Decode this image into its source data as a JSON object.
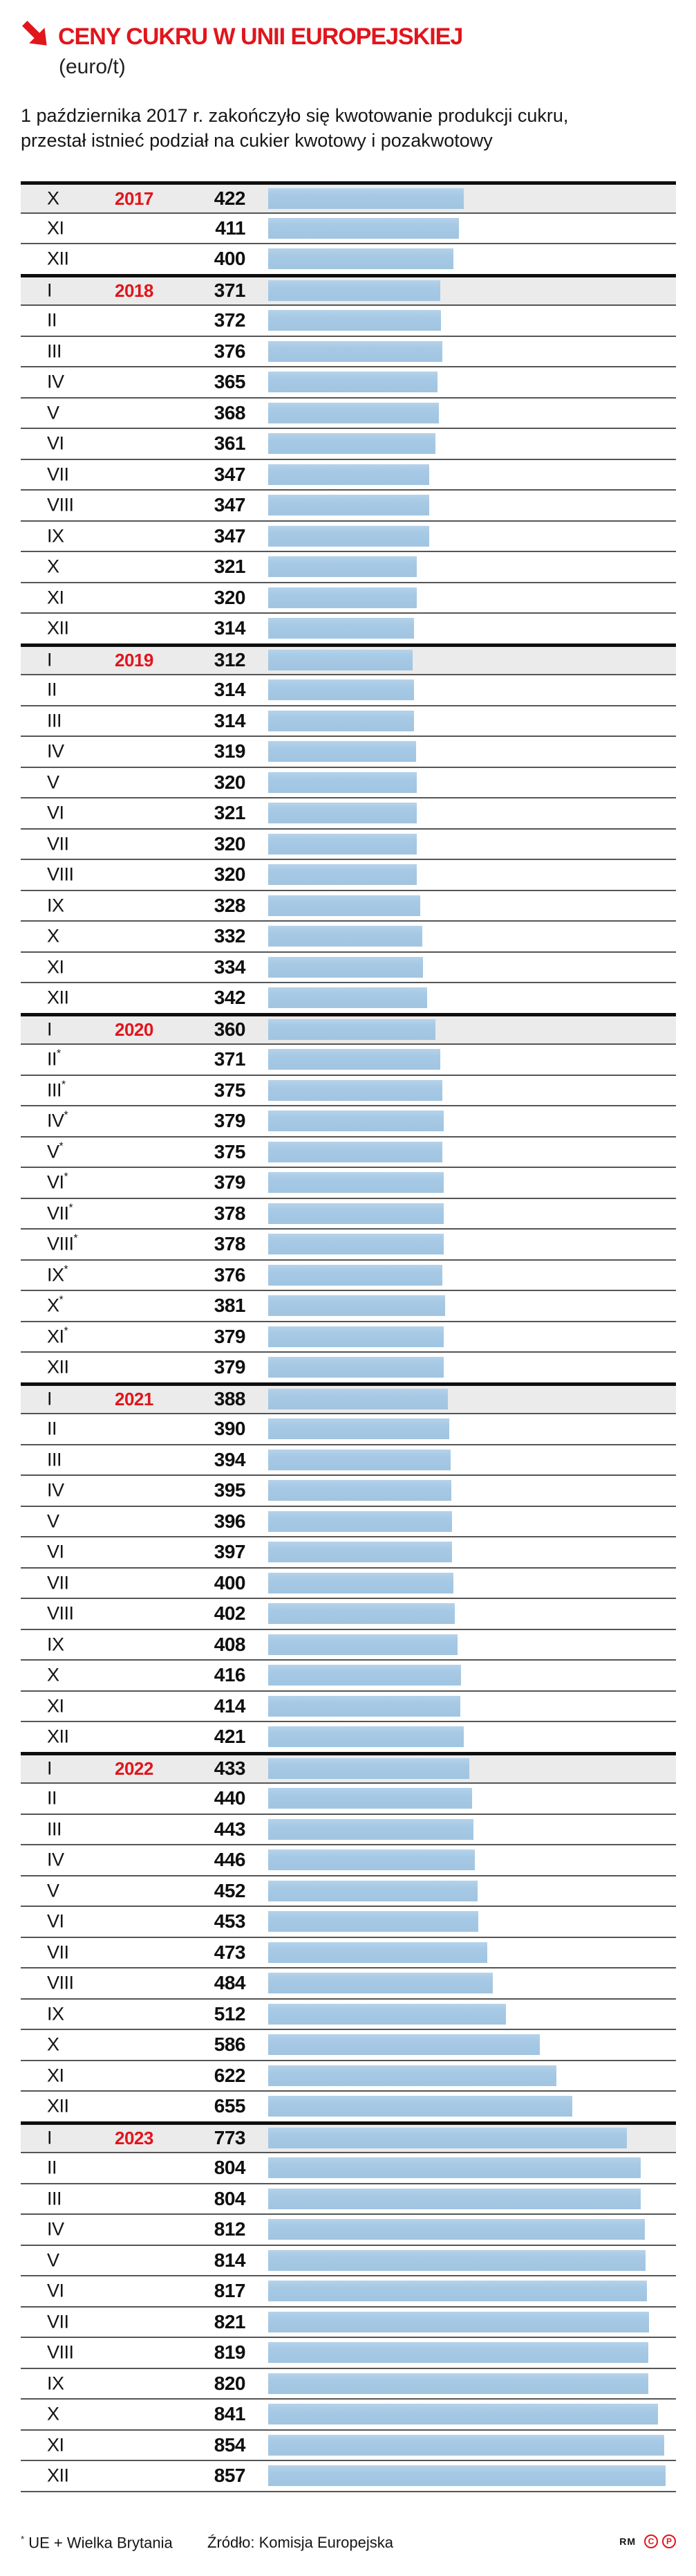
{
  "header": {
    "title": "CENY CUKRU W UNII EUROPEJSKIEJ",
    "subtitle": "(euro/t)",
    "intro_line1": "1 października 2017 r. zakończyło się kwotowanie produkcji cukru,",
    "intro_line2": "przestał istnieć podział na cukier kwotowy i pozakwotowy",
    "accent_color": "#e1151c"
  },
  "chart_data": {
    "type": "bar",
    "orientation": "horizontal",
    "value_unit": "euro/t",
    "xlim": [
      0,
      860
    ],
    "bar_color": "#a6c9e5",
    "year_row_bg": "#ebebeb",
    "note_for_asterisk": "UE + Wielka Brytania",
    "rows": [
      {
        "m": "X",
        "y": "2017",
        "v": 422,
        "a": false
      },
      {
        "m": "XI",
        "y": "",
        "v": 411,
        "a": false
      },
      {
        "m": "XII",
        "y": "",
        "v": 400,
        "a": false
      },
      {
        "m": "I",
        "y": "2018",
        "v": 371,
        "a": false
      },
      {
        "m": "II",
        "y": "",
        "v": 372,
        "a": false
      },
      {
        "m": "III",
        "y": "",
        "v": 376,
        "a": false
      },
      {
        "m": "IV",
        "y": "",
        "v": 365,
        "a": false
      },
      {
        "m": "V",
        "y": "",
        "v": 368,
        "a": false
      },
      {
        "m": "VI",
        "y": "",
        "v": 361,
        "a": false
      },
      {
        "m": "VII",
        "y": "",
        "v": 347,
        "a": false
      },
      {
        "m": "VIII",
        "y": "",
        "v": 347,
        "a": false
      },
      {
        "m": "IX",
        "y": "",
        "v": 347,
        "a": false
      },
      {
        "m": "X",
        "y": "",
        "v": 321,
        "a": false
      },
      {
        "m": "XI",
        "y": "",
        "v": 320,
        "a": false
      },
      {
        "m": "XII",
        "y": "",
        "v": 314,
        "a": false
      },
      {
        "m": "I",
        "y": "2019",
        "v": 312,
        "a": false
      },
      {
        "m": "II",
        "y": "",
        "v": 314,
        "a": false
      },
      {
        "m": "III",
        "y": "",
        "v": 314,
        "a": false
      },
      {
        "m": "IV",
        "y": "",
        "v": 319,
        "a": false
      },
      {
        "m": "V",
        "y": "",
        "v": 320,
        "a": false
      },
      {
        "m": "VI",
        "y": "",
        "v": 321,
        "a": false
      },
      {
        "m": "VII",
        "y": "",
        "v": 320,
        "a": false
      },
      {
        "m": "VIII",
        "y": "",
        "v": 320,
        "a": false
      },
      {
        "m": "IX",
        "y": "",
        "v": 328,
        "a": false
      },
      {
        "m": "X",
        "y": "",
        "v": 332,
        "a": false
      },
      {
        "m": "XI",
        "y": "",
        "v": 334,
        "a": false
      },
      {
        "m": "XII",
        "y": "",
        "v": 342,
        "a": false
      },
      {
        "m": "I",
        "y": "2020",
        "v": 360,
        "a": false
      },
      {
        "m": "II",
        "y": "",
        "v": 371,
        "a": true
      },
      {
        "m": "III",
        "y": "",
        "v": 375,
        "a": true
      },
      {
        "m": "IV",
        "y": "",
        "v": 379,
        "a": true
      },
      {
        "m": "V",
        "y": "",
        "v": 375,
        "a": true
      },
      {
        "m": "VI",
        "y": "",
        "v": 379,
        "a": true
      },
      {
        "m": "VII",
        "y": "",
        "v": 378,
        "a": true
      },
      {
        "m": "VIII",
        "y": "",
        "v": 378,
        "a": true
      },
      {
        "m": "IX",
        "y": "",
        "v": 376,
        "a": true
      },
      {
        "m": "X",
        "y": "",
        "v": 381,
        "a": true
      },
      {
        "m": "XI",
        "y": "",
        "v": 379,
        "a": true
      },
      {
        "m": "XII",
        "y": "",
        "v": 379,
        "a": false
      },
      {
        "m": "I",
        "y": "2021",
        "v": 388,
        "a": false
      },
      {
        "m": "II",
        "y": "",
        "v": 390,
        "a": false
      },
      {
        "m": "III",
        "y": "",
        "v": 394,
        "a": false
      },
      {
        "m": "IV",
        "y": "",
        "v": 395,
        "a": false
      },
      {
        "m": "V",
        "y": "",
        "v": 396,
        "a": false
      },
      {
        "m": "VI",
        "y": "",
        "v": 397,
        "a": false
      },
      {
        "m": "VII",
        "y": "",
        "v": 400,
        "a": false
      },
      {
        "m": "VIII",
        "y": "",
        "v": 402,
        "a": false
      },
      {
        "m": "IX",
        "y": "",
        "v": 408,
        "a": false
      },
      {
        "m": "X",
        "y": "",
        "v": 416,
        "a": false
      },
      {
        "m": "XI",
        "y": "",
        "v": 414,
        "a": false
      },
      {
        "m": "XII",
        "y": "",
        "v": 421,
        "a": false
      },
      {
        "m": "I",
        "y": "2022",
        "v": 433,
        "a": false
      },
      {
        "m": "II",
        "y": "",
        "v": 440,
        "a": false
      },
      {
        "m": "III",
        "y": "",
        "v": 443,
        "a": false
      },
      {
        "m": "IV",
        "y": "",
        "v": 446,
        "a": false
      },
      {
        "m": "V",
        "y": "",
        "v": 452,
        "a": false
      },
      {
        "m": "VI",
        "y": "",
        "v": 453,
        "a": false
      },
      {
        "m": "VII",
        "y": "",
        "v": 473,
        "a": false
      },
      {
        "m": "VIII",
        "y": "",
        "v": 484,
        "a": false
      },
      {
        "m": "IX",
        "y": "",
        "v": 512,
        "a": false
      },
      {
        "m": "X",
        "y": "",
        "v": 586,
        "a": false
      },
      {
        "m": "XI",
        "y": "",
        "v": 622,
        "a": false
      },
      {
        "m": "XII",
        "y": "",
        "v": 655,
        "a": false
      },
      {
        "m": "I",
        "y": "2023",
        "v": 773,
        "a": false
      },
      {
        "m": "II",
        "y": "",
        "v": 804,
        "a": false
      },
      {
        "m": "III",
        "y": "",
        "v": 804,
        "a": false
      },
      {
        "m": "IV",
        "y": "",
        "v": 812,
        "a": false
      },
      {
        "m": "V",
        "y": "",
        "v": 814,
        "a": false
      },
      {
        "m": "VI",
        "y": "",
        "v": 817,
        "a": false
      },
      {
        "m": "VII",
        "y": "",
        "v": 821,
        "a": false
      },
      {
        "m": "VIII",
        "y": "",
        "v": 819,
        "a": false
      },
      {
        "m": "IX",
        "y": "",
        "v": 820,
        "a": false
      },
      {
        "m": "X",
        "y": "",
        "v": 841,
        "a": false
      },
      {
        "m": "XI",
        "y": "",
        "v": 854,
        "a": false
      },
      {
        "m": "XII",
        "y": "",
        "v": 857,
        "a": false
      }
    ]
  },
  "footer": {
    "note_mark": "*",
    "note_text": " UE + Wielka Brytania",
    "source": "Źródło: Komisja Europejska",
    "credit": "RM",
    "copyright_letter": "C",
    "phonogram_letter": "P"
  }
}
